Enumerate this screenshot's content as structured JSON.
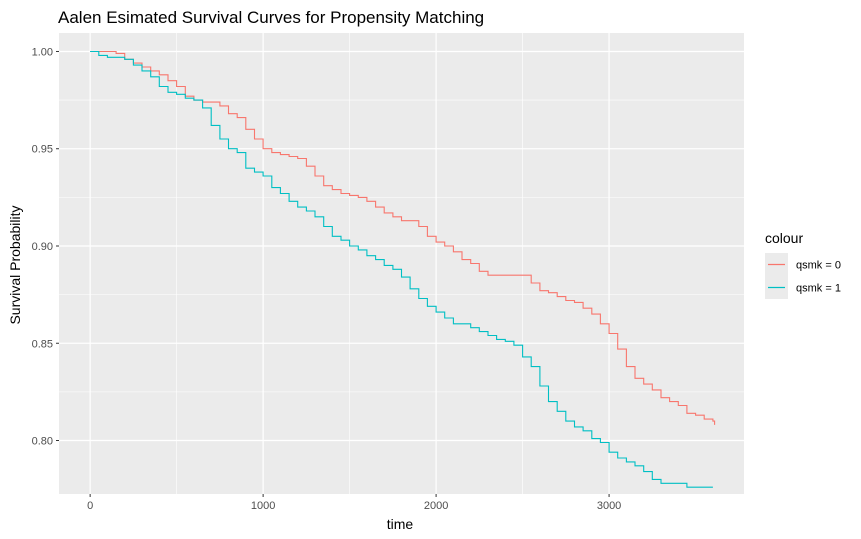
{
  "chart_data": {
    "type": "line",
    "title": "Aalen Esimated Survival Curves for Propensity Matching",
    "xlabel": "time",
    "ylabel": "Survival Probability",
    "xlim": [
      -180,
      3780
    ],
    "ylim": [
      0.7725,
      1.0095
    ],
    "x_ticks": [
      0,
      1000,
      2000,
      3000
    ],
    "x_tick_labels": [
      "0",
      "1000",
      "2000",
      "3000"
    ],
    "y_ticks": [
      0.8,
      0.85,
      0.9,
      0.95,
      1.0
    ],
    "y_tick_labels": [
      "0.80",
      "0.85",
      "0.90",
      "0.95",
      "1.00"
    ],
    "grid": true,
    "legend": {
      "title": "colour",
      "position": "right"
    },
    "series": [
      {
        "name": "qsmk = 0",
        "color": "#F8766D",
        "points": [
          [
            0,
            1.0
          ],
          [
            150,
            0.999
          ],
          [
            200,
            0.996
          ],
          [
            250,
            0.994
          ],
          [
            300,
            0.992
          ],
          [
            350,
            0.99
          ],
          [
            400,
            0.988
          ],
          [
            450,
            0.985
          ],
          [
            500,
            0.982
          ],
          [
            550,
            0.977
          ],
          [
            600,
            0.975
          ],
          [
            650,
            0.974
          ],
          [
            700,
            0.974
          ],
          [
            750,
            0.972
          ],
          [
            800,
            0.968
          ],
          [
            850,
            0.966
          ],
          [
            900,
            0.96
          ],
          [
            950,
            0.955
          ],
          [
            1000,
            0.95
          ],
          [
            1050,
            0.948
          ],
          [
            1100,
            0.947
          ],
          [
            1150,
            0.946
          ],
          [
            1200,
            0.945
          ],
          [
            1250,
            0.941
          ],
          [
            1300,
            0.936
          ],
          [
            1350,
            0.931
          ],
          [
            1400,
            0.929
          ],
          [
            1450,
            0.927
          ],
          [
            1500,
            0.926
          ],
          [
            1550,
            0.925
          ],
          [
            1600,
            0.923
          ],
          [
            1650,
            0.92
          ],
          [
            1700,
            0.917
          ],
          [
            1750,
            0.915
          ],
          [
            1800,
            0.913
          ],
          [
            1850,
            0.913
          ],
          [
            1900,
            0.91
          ],
          [
            1950,
            0.905
          ],
          [
            2000,
            0.902
          ],
          [
            2050,
            0.9
          ],
          [
            2100,
            0.897
          ],
          [
            2150,
            0.893
          ],
          [
            2200,
            0.891
          ],
          [
            2250,
            0.887
          ],
          [
            2300,
            0.885
          ],
          [
            2350,
            0.885
          ],
          [
            2400,
            0.885
          ],
          [
            2450,
            0.885
          ],
          [
            2500,
            0.885
          ],
          [
            2550,
            0.881
          ],
          [
            2600,
            0.877
          ],
          [
            2650,
            0.876
          ],
          [
            2700,
            0.874
          ],
          [
            2750,
            0.872
          ],
          [
            2800,
            0.871
          ],
          [
            2850,
            0.868
          ],
          [
            2900,
            0.865
          ],
          [
            2950,
            0.86
          ],
          [
            3000,
            0.855
          ],
          [
            3050,
            0.847
          ],
          [
            3100,
            0.838
          ],
          [
            3150,
            0.832
          ],
          [
            3200,
            0.829
          ],
          [
            3250,
            0.826
          ],
          [
            3300,
            0.822
          ],
          [
            3350,
            0.82
          ],
          [
            3400,
            0.818
          ],
          [
            3450,
            0.814
          ],
          [
            3500,
            0.813
          ],
          [
            3550,
            0.811
          ],
          [
            3600,
            0.81
          ],
          [
            3610,
            0.808
          ]
        ]
      },
      {
        "name": "qsmk = 1",
        "color": "#00BFC4",
        "points": [
          [
            0,
            1.0
          ],
          [
            50,
            0.998
          ],
          [
            100,
            0.997
          ],
          [
            150,
            0.997
          ],
          [
            200,
            0.996
          ],
          [
            250,
            0.993
          ],
          [
            300,
            0.99
          ],
          [
            350,
            0.987
          ],
          [
            400,
            0.982
          ],
          [
            450,
            0.979
          ],
          [
            500,
            0.978
          ],
          [
            550,
            0.976
          ],
          [
            600,
            0.975
          ],
          [
            650,
            0.971
          ],
          [
            700,
            0.962
          ],
          [
            750,
            0.955
          ],
          [
            800,
            0.95
          ],
          [
            850,
            0.948
          ],
          [
            900,
            0.94
          ],
          [
            950,
            0.938
          ],
          [
            1000,
            0.936
          ],
          [
            1050,
            0.93
          ],
          [
            1100,
            0.927
          ],
          [
            1150,
            0.923
          ],
          [
            1200,
            0.92
          ],
          [
            1250,
            0.918
          ],
          [
            1300,
            0.915
          ],
          [
            1350,
            0.91
          ],
          [
            1400,
            0.905
          ],
          [
            1450,
            0.903
          ],
          [
            1500,
            0.9
          ],
          [
            1550,
            0.898
          ],
          [
            1600,
            0.895
          ],
          [
            1650,
            0.893
          ],
          [
            1700,
            0.89
          ],
          [
            1750,
            0.888
          ],
          [
            1800,
            0.884
          ],
          [
            1850,
            0.878
          ],
          [
            1900,
            0.873
          ],
          [
            1950,
            0.869
          ],
          [
            2000,
            0.866
          ],
          [
            2050,
            0.863
          ],
          [
            2100,
            0.86
          ],
          [
            2150,
            0.86
          ],
          [
            2200,
            0.858
          ],
          [
            2250,
            0.856
          ],
          [
            2300,
            0.854
          ],
          [
            2350,
            0.852
          ],
          [
            2400,
            0.851
          ],
          [
            2450,
            0.849
          ],
          [
            2500,
            0.843
          ],
          [
            2550,
            0.838
          ],
          [
            2600,
            0.828
          ],
          [
            2650,
            0.82
          ],
          [
            2700,
            0.815
          ],
          [
            2750,
            0.81
          ],
          [
            2800,
            0.807
          ],
          [
            2850,
            0.805
          ],
          [
            2900,
            0.801
          ],
          [
            2950,
            0.799
          ],
          [
            3000,
            0.794
          ],
          [
            3050,
            0.791
          ],
          [
            3100,
            0.789
          ],
          [
            3150,
            0.787
          ],
          [
            3200,
            0.784
          ],
          [
            3250,
            0.78
          ],
          [
            3300,
            0.778
          ],
          [
            3350,
            0.778
          ],
          [
            3400,
            0.778
          ],
          [
            3450,
            0.776
          ],
          [
            3500,
            0.776
          ],
          [
            3550,
            0.776
          ],
          [
            3600,
            0.776
          ]
        ]
      }
    ]
  }
}
